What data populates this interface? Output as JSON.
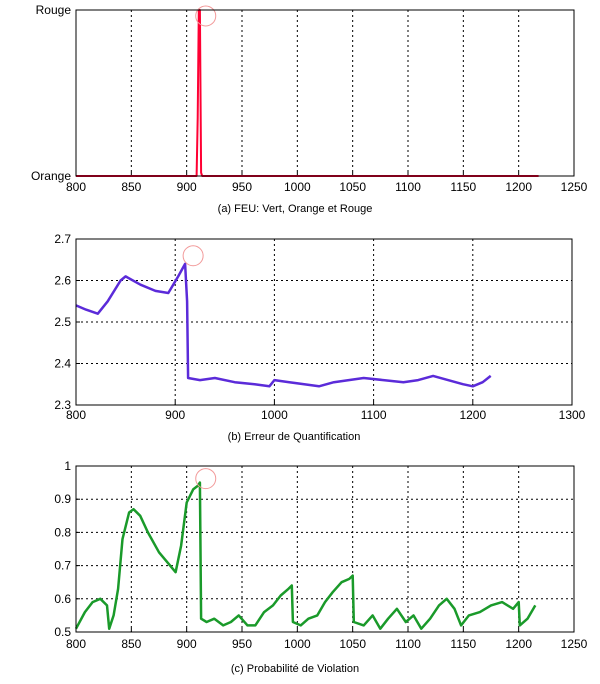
{
  "chart_data": [
    {
      "type": "line",
      "title": "",
      "caption": "(a) FEU: Vert, Orange et Rouge",
      "xlim": [
        800,
        1250
      ],
      "ylim": [
        0,
        1
      ],
      "xticks": [
        "800",
        "850",
        "900",
        "950",
        "1000",
        "1050",
        "1100",
        "1150",
        "1200",
        "1250"
      ],
      "yticks": [
        {
          "value": 0,
          "label": "Orange"
        },
        {
          "value": 1,
          "label": "Rouge"
        }
      ],
      "grid": true,
      "line_color": "#ff0033",
      "marker_color": "#f29a9a",
      "marker": {
        "x": 910,
        "y": 0.94
      },
      "series": [
        {
          "x": [
            800,
            909,
            910,
            911,
            912,
            913,
            914,
            1218
          ],
          "y": [
            0,
            0,
            0.35,
            1,
            1,
            0.02,
            0,
            0
          ]
        }
      ]
    },
    {
      "type": "line",
      "title": "",
      "caption": "(b) Erreur de Quantification",
      "xlim": [
        800,
        1300
      ],
      "ylim": [
        2.3,
        2.7
      ],
      "xticks": [
        "800",
        "900",
        "1000",
        "1100",
        "1200",
        "1300"
      ],
      "yticks": [
        "2.3",
        "2.4",
        "2.5",
        "2.6",
        "2.7"
      ],
      "grid": true,
      "line_color": "#5b2bd9",
      "marker_color": "#f29a9a",
      "marker": {
        "x": 910,
        "y": 2.65
      },
      "series": [
        {
          "x": [
            800,
            810,
            822,
            832,
            845,
            850,
            865,
            880,
            893,
            903,
            910,
            912,
            913,
            925,
            940,
            960,
            980,
            995,
            1000,
            1015,
            1030,
            1045,
            1060,
            1075,
            1090,
            1110,
            1130,
            1145,
            1160,
            1175,
            1190,
            1200,
            1210,
            1218
          ],
          "y": [
            2.54,
            2.53,
            2.52,
            2.55,
            2.6,
            2.61,
            2.59,
            2.575,
            2.57,
            2.61,
            2.64,
            2.55,
            2.365,
            2.36,
            2.365,
            2.355,
            2.35,
            2.345,
            2.36,
            2.355,
            2.35,
            2.345,
            2.355,
            2.36,
            2.365,
            2.36,
            2.355,
            2.36,
            2.37,
            2.36,
            2.35,
            2.345,
            2.355,
            2.37
          ]
        }
      ]
    },
    {
      "type": "line",
      "title": "",
      "caption": "(c) Probabilité de Violation",
      "xlim": [
        800,
        1250
      ],
      "ylim": [
        0.5,
        1
      ],
      "xticks": [
        "800",
        "850",
        "900",
        "950",
        "1000",
        "1050",
        "1100",
        "1150",
        "1200",
        "1250"
      ],
      "yticks": [
        "0.5",
        "0.6",
        "0.7",
        "0.8",
        "0.9",
        "1"
      ],
      "grid": true,
      "line_color": "#1a9a2a",
      "marker_color": "#f29a9a",
      "marker": {
        "x": 910,
        "y": 0.95
      },
      "series": [
        {
          "x": [
            800,
            808,
            815,
            822,
            828,
            830,
            834,
            838,
            842,
            848,
            852,
            858,
            865,
            875,
            885,
            890,
            895,
            900,
            906,
            910,
            912,
            913,
            918,
            925,
            933,
            940,
            947,
            955,
            962,
            970,
            978,
            985,
            992,
            995,
            996,
            1003,
            1010,
            1018,
            1025,
            1032,
            1040,
            1047,
            1050,
            1051,
            1060,
            1068,
            1075,
            1082,
            1090,
            1098,
            1105,
            1112,
            1120,
            1128,
            1135,
            1142,
            1148,
            1155,
            1165,
            1175,
            1185,
            1195,
            1200,
            1201,
            1208,
            1215
          ],
          "y": [
            0.51,
            0.56,
            0.59,
            0.6,
            0.58,
            0.51,
            0.55,
            0.63,
            0.78,
            0.86,
            0.87,
            0.85,
            0.8,
            0.74,
            0.7,
            0.68,
            0.76,
            0.89,
            0.93,
            0.94,
            0.95,
            0.54,
            0.53,
            0.54,
            0.52,
            0.53,
            0.55,
            0.52,
            0.52,
            0.56,
            0.58,
            0.61,
            0.63,
            0.64,
            0.53,
            0.52,
            0.54,
            0.55,
            0.59,
            0.62,
            0.65,
            0.66,
            0.67,
            0.53,
            0.52,
            0.55,
            0.51,
            0.54,
            0.57,
            0.53,
            0.55,
            0.51,
            0.54,
            0.58,
            0.6,
            0.57,
            0.52,
            0.55,
            0.56,
            0.58,
            0.59,
            0.57,
            0.59,
            0.52,
            0.54,
            0.58
          ]
        }
      ]
    }
  ]
}
